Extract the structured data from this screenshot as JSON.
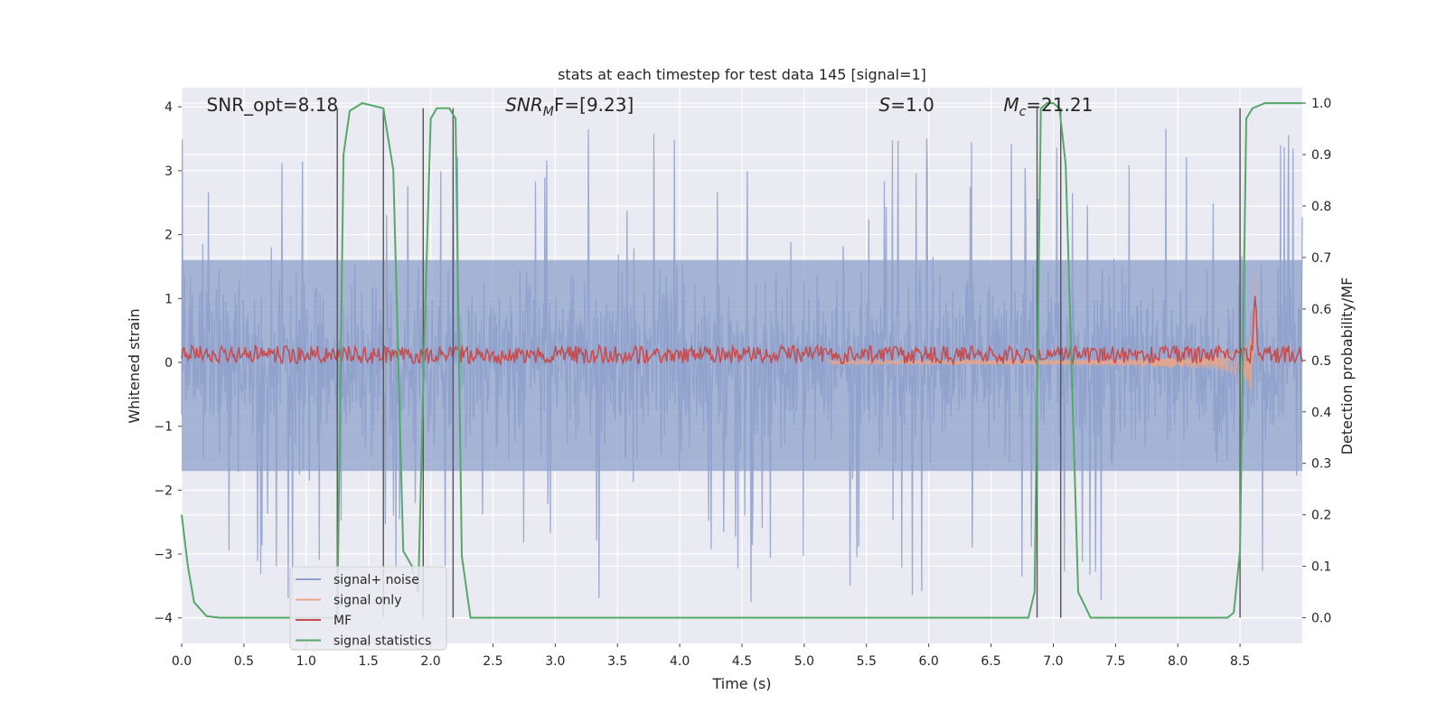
{
  "chart_data": {
    "type": "line",
    "title": "stats at each timestep for test data 145 [signal=1]",
    "xlabel": "Time (s)",
    "ylabel_left": "Whitened strain",
    "ylabel_right": "Detection probability/MF",
    "xlim": [
      0.0,
      9.0
    ],
    "ylim_left": [
      -4.4,
      4.3
    ],
    "ylim_right": [
      -0.05,
      1.03
    ],
    "x_ticks": [
      0.0,
      0.5,
      1.0,
      1.5,
      2.0,
      2.5,
      3.0,
      3.5,
      4.0,
      4.5,
      5.0,
      5.5,
      6.0,
      6.5,
      7.0,
      7.5,
      8.0,
      8.5
    ],
    "x_tick_labels": [
      "0.0",
      "0.5",
      "1.0",
      "1.5",
      "2.0",
      "2.5",
      "3.0",
      "3.5",
      "4.0",
      "4.5",
      "5.0",
      "5.5",
      "6.0",
      "6.5",
      "7.0",
      "7.5",
      "8.0",
      "8.5"
    ],
    "y_left_ticks": [
      4,
      3,
      2,
      1,
      0,
      -1,
      -2,
      -3,
      -4
    ],
    "y_left_tick_labels": [
      "4",
      "3",
      "2",
      "1",
      "0",
      "−1",
      "−2",
      "−3",
      "−4"
    ],
    "y_right_ticks": [
      1.0,
      0.9,
      0.8,
      0.7,
      0.6,
      0.5,
      0.4,
      0.3,
      0.2,
      0.1,
      0.0
    ],
    "y_right_tick_labels": [
      "1.0",
      "0.9",
      "0.8",
      "0.7",
      "0.6",
      "0.5",
      "0.4",
      "0.3",
      "0.2",
      "0.1",
      "0.0"
    ],
    "grid": true,
    "legend_position": "lower-left",
    "annotations": [
      {
        "prefix": "SNR_opt=8.18",
        "main": "",
        "sub": "",
        "suffix": "",
        "x": 0.2
      },
      {
        "prefix": "",
        "main": "SNR",
        "sub": "M",
        "suffix": "F=[9.23]",
        "x": 2.6
      },
      {
        "prefix": "",
        "main": "S",
        "sub": "",
        "suffix": "=1.0",
        "x": 5.6
      },
      {
        "prefix": "",
        "main": "M",
        "sub": "c",
        "suffix": "=21.21",
        "x": 6.6
      }
    ],
    "series": [
      {
        "name": "signal+ noise",
        "color": "#8da0cb",
        "axis": "left",
        "style": "noise",
        "amplitude_range": [
          -4.0,
          4.0
        ],
        "typical_range": [
          -1.7,
          1.6
        ]
      },
      {
        "name": "signal only",
        "color": "#e8a58a",
        "axis": "left",
        "style": "chirp",
        "peak_time": 8.62,
        "peak_amplitude": 1.7
      },
      {
        "name": "MF",
        "color": "#c44e52",
        "axis": "left",
        "style": "trace",
        "baseline": 0.12,
        "peak_time": 8.62,
        "peak_value": 1.0
      },
      {
        "name": "signal statistics",
        "color": "#55a868",
        "axis": "right",
        "style": "line",
        "x": [
          0.0,
          0.05,
          0.1,
          0.2,
          0.3,
          1.2,
          1.25,
          1.3,
          1.35,
          1.45,
          1.62,
          1.7,
          1.78,
          1.85,
          1.9,
          1.95,
          2.0,
          2.05,
          2.15,
          2.2,
          2.25,
          2.32,
          2.6,
          6.8,
          6.85,
          6.9,
          6.95,
          7.0,
          7.05,
          7.1,
          7.2,
          7.3,
          8.4,
          8.45,
          8.5,
          8.55,
          8.6,
          8.7,
          9.0
        ],
        "y": [
          0.2,
          0.1,
          0.03,
          0.003,
          0.0,
          0.0,
          0.0,
          0.9,
          0.985,
          1.0,
          0.99,
          0.87,
          0.13,
          0.1,
          0.05,
          0.55,
          0.97,
          0.99,
          0.99,
          0.97,
          0.12,
          0.0,
          0.0,
          0.0,
          0.05,
          0.99,
          1.0,
          1.0,
          0.99,
          0.88,
          0.05,
          0.0,
          0.0,
          0.01,
          0.13,
          0.97,
          0.99,
          1.0,
          1.0
        ]
      },
      {
        "name": "vertical markers",
        "color": "#555555",
        "axis": "right",
        "style": "vlines",
        "x": [
          1.25,
          1.62,
          1.94,
          2.18,
          6.87,
          7.06,
          8.5
        ],
        "from": 0.0,
        "to": 0.99
      }
    ]
  }
}
